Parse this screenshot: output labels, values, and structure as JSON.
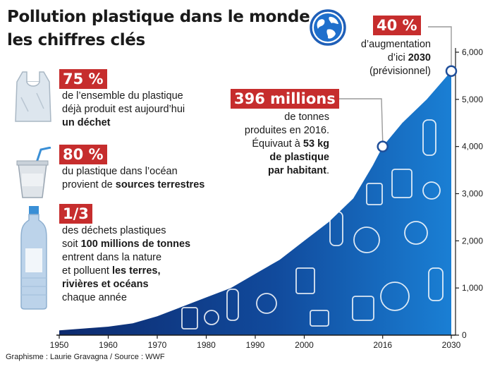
{
  "title": {
    "line1": "Pollution plastique dans le monde :",
    "line2": "les chiffres clés"
  },
  "facts": [
    {
      "badge": "75 %",
      "lines": [
        [
          {
            "t": "de l’ensemble du plastique",
            "b": false
          }
        ],
        [
          {
            "t": "déjà produit est aujourd’hui",
            "b": false
          }
        ],
        [
          {
            "t": "un déchet",
            "b": true
          }
        ]
      ]
    },
    {
      "badge": "80 %",
      "lines": [
        [
          {
            "t": "du plastique dans l’océan",
            "b": false
          }
        ],
        [
          {
            "t": "provient de ",
            "b": false
          },
          {
            "t": "sources terrestres",
            "b": true
          }
        ]
      ]
    },
    {
      "badge": "1/3",
      "lines": [
        [
          {
            "t": "des déchets plastiques",
            "b": false
          }
        ],
        [
          {
            "t": "soit ",
            "b": false
          },
          {
            "t": "100 millions de tonnes",
            "b": true
          }
        ],
        [
          {
            "t": "entrent dans la nature",
            "b": false
          }
        ],
        [
          {
            "t": "et polluent ",
            "b": false
          },
          {
            "t": "les terres,",
            "b": true
          }
        ],
        [
          {
            "t": "rivières et océans",
            "b": true
          }
        ],
        [
          {
            "t": "chaque année",
            "b": false
          }
        ]
      ]
    }
  ],
  "annotation_2016": {
    "badge": "396 millions",
    "lines": [
      [
        {
          "t": "de tonnes",
          "b": false
        }
      ],
      [
        {
          "t": "produites en 2016.",
          "b": false
        }
      ],
      [
        {
          "t": "Équivaut à ",
          "b": false
        },
        {
          "t": "53 kg",
          "b": true
        }
      ],
      [
        {
          "t": "de plastique",
          "b": true
        }
      ],
      [
        {
          "t": "par habitant",
          "b": true
        },
        {
          "t": ".",
          "b": false
        }
      ]
    ]
  },
  "annotation_2030": {
    "badge": "40 %",
    "lines": [
      [
        {
          "t": "d’augmentation",
          "b": false
        }
      ],
      [
        {
          "t": "d’ici ",
          "b": false
        },
        {
          "t": "2030",
          "b": true
        }
      ],
      [
        {
          "t": "(prévisionnel)",
          "b": false
        }
      ]
    ]
  },
  "source": "Graphisme : Laurie Gravagna / Source : WWF",
  "colors": {
    "badge_red": "#c62d2d",
    "area_dark": "#0d2a6e",
    "area_light": "#1a7fd4",
    "marker": "#1f4e99"
  },
  "icons": [
    "globe-icon",
    "plastic-bag-icon",
    "plastic-cup-straw-icon",
    "plastic-bottle-icon"
  ],
  "chart_data": {
    "type": "area",
    "x": [
      1950,
      1955,
      1960,
      1965,
      1970,
      1975,
      1980,
      1985,
      1990,
      1995,
      2000,
      2005,
      2010,
      2014,
      2016,
      2020,
      2025,
      2030
    ],
    "y": [
      100,
      140,
      180,
      250,
      400,
      600,
      800,
      1000,
      1300,
      1600,
      2000,
      2400,
      2900,
      3600,
      4000,
      4500,
      5000,
      5600
    ],
    "x_ticks": [
      "1950",
      "1960",
      "1970",
      "1980",
      "1990",
      "2000",
      "2016",
      "2030"
    ],
    "x_tick_values": [
      1950,
      1960,
      1970,
      1980,
      1990,
      2000,
      2016,
      2030
    ],
    "y_ticks": [
      "0",
      "1,000",
      "2,000",
      "3,000",
      "4,000",
      "5,000",
      "6,000"
    ],
    "y_tick_values": [
      0,
      1000,
      2000,
      3000,
      4000,
      5000,
      6000
    ],
    "xlim": [
      1950,
      2030
    ],
    "ylim": [
      0,
      6000
    ],
    "highlight_points": [
      {
        "x": 2016,
        "y": 4000
      },
      {
        "x": 2030,
        "y": 5600
      }
    ],
    "grid": false,
    "legend": "none"
  }
}
